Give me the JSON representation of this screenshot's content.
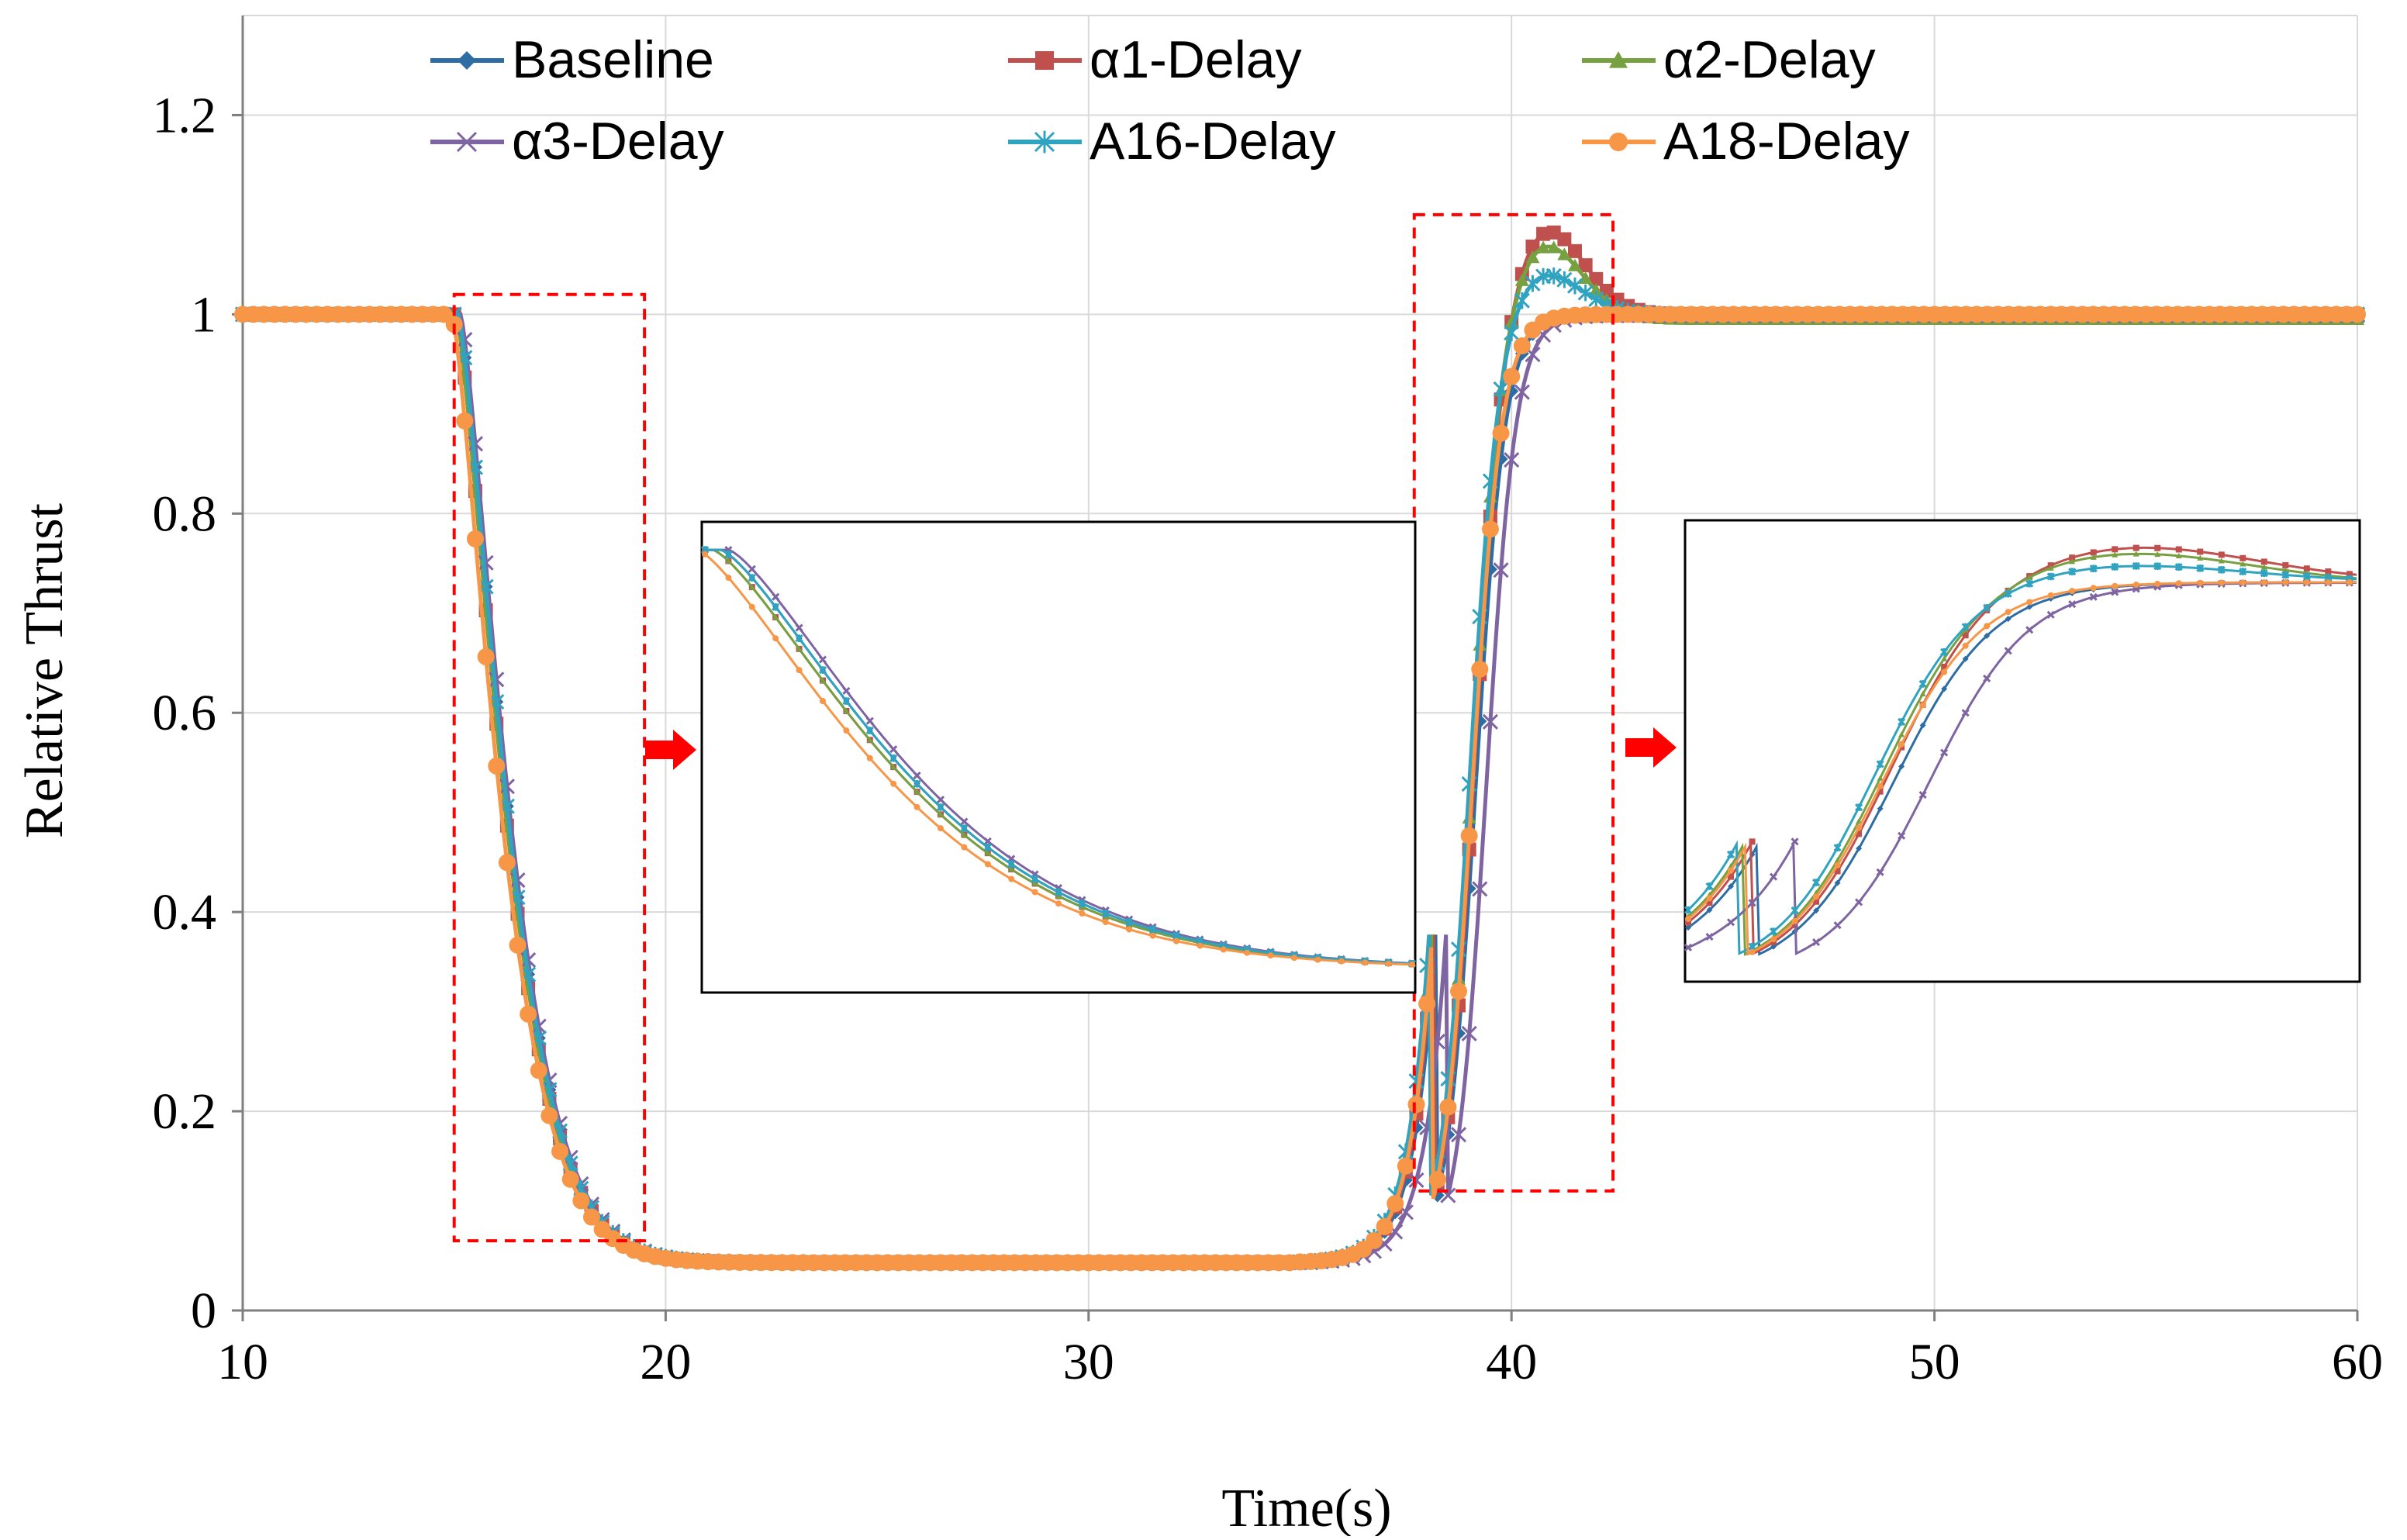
{
  "chart_data": {
    "type": "line",
    "title": "",
    "xlabel": "Time(s)",
    "ylabel": "Relative Thrust",
    "xlim": [
      10,
      60
    ],
    "ylim": [
      0,
      1.3
    ],
    "xticks": [
      10,
      20,
      30,
      40,
      50,
      60
    ],
    "yticks": [
      0,
      0.2,
      0.4,
      0.6,
      0.8,
      1,
      1.2
    ],
    "xtick_labels": [
      "10",
      "20",
      "30",
      "40",
      "50",
      "60"
    ],
    "ytick_labels": [
      "0",
      "0.2",
      "0.4",
      "0.6",
      "0.8",
      "1",
      "1.2"
    ],
    "grid": true,
    "legend_position": "top",
    "series": [
      {
        "name": "Baseline",
        "color": "#2E6DA4",
        "marker": "diamond",
        "overshoot": 0,
        "riseShift": 0.0,
        "fallShift": 0.1,
        "settle": 1.0
      },
      {
        "name": "α1-Delay",
        "color": "#C0504D",
        "marker": "square",
        "overshoot": 0.09,
        "riseShift": -0.05,
        "fallShift": 0.05,
        "settle": 1.0
      },
      {
        "name": "α2-Delay",
        "color": "#77A040",
        "marker": "triangle",
        "overshoot": 0.08,
        "riseShift": -0.1,
        "fallShift": 0.05,
        "settle": 0.995
      },
      {
        "name": "α3-Delay",
        "color": "#7F64A2",
        "marker": "x",
        "overshoot": 0,
        "riseShift": 0.25,
        "fallShift": 0.15,
        "settle": 0.999
      },
      {
        "name": "A16-Delay",
        "color": "#2FA3BF",
        "marker": "asterisk",
        "overshoot": 0.045,
        "riseShift": -0.15,
        "fallShift": 0.1,
        "settle": 1.0
      },
      {
        "name": "A18-Delay",
        "color": "#F79646",
        "marker": "circle",
        "overshoot": 0,
        "riseShift": -0.08,
        "fallShift": -0.05,
        "settle": 1.0
      }
    ],
    "highlight_boxes": [
      {
        "x_range": [
          15,
          19.5
        ],
        "y_range": [
          0.07,
          1.02
        ]
      },
      {
        "x_range": [
          37.7,
          42.4
        ],
        "y_range": [
          0.12,
          1.1
        ]
      }
    ],
    "insets": [
      {
        "name": "fall-zoom",
        "x_range": [
          15,
          19.5
        ]
      },
      {
        "name": "rise-zoom",
        "x_range": [
          37.7,
          42.4
        ]
      }
    ]
  }
}
